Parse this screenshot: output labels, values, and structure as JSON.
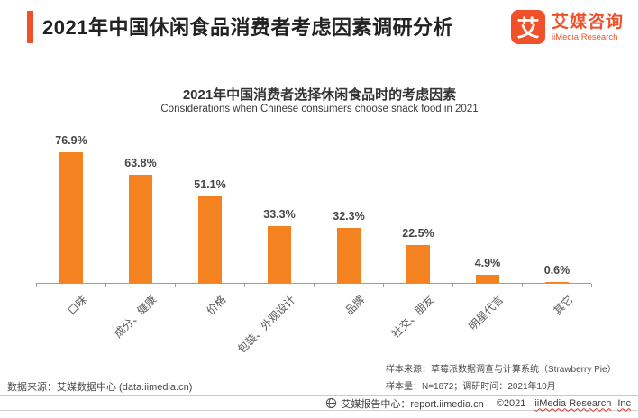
{
  "colors": {
    "accent_orange": "#F0512A",
    "bar_orange": "#F58220",
    "spellcheck_red": "#E0382E"
  },
  "header": {
    "title": "2021年中国休闲食品消费者考虑因素调研分析",
    "logo": {
      "mark": "艾",
      "name_cn": "艾媒咨询",
      "name_en": "iiMedia Research"
    }
  },
  "chart_data": {
    "type": "bar",
    "title": "2021年中国消费者选择休闲食品时的考虑因素",
    "subtitle": "Considerations when Chinese consumers choose snack food in 2021",
    "categories": [
      "口味",
      "成分、健康",
      "价格",
      "包装、外观设计",
      "品牌",
      "社交、朋友",
      "明星代言",
      "其它"
    ],
    "values": [
      76.9,
      63.8,
      51.1,
      33.3,
      32.3,
      22.5,
      4.9,
      0.6
    ],
    "value_labels": [
      "76.9%",
      "63.8%",
      "51.1%",
      "33.3%",
      "32.3%",
      "22.5%",
      "4.9%",
      "0.6%"
    ],
    "unit": "%",
    "bar_color": "#F58220",
    "ylim": [
      0,
      80
    ],
    "grid": false,
    "legend": null,
    "xlabel": "",
    "ylabel": ""
  },
  "notes": {
    "data_source": "数据来源：艾媒数据中心 (data.iimedia.cn)",
    "sample_source": "样本来源：草莓派数据调查与计算系统（Strawberry Pie）",
    "sample_size": "样本量：N=1872；调研时间：2021年10月"
  },
  "footer": {
    "report_center": "艾媒报告中心：report.iimedia.cn",
    "copyright": "©2021",
    "company": "iiMedia Research",
    "company_suffix": "Inc"
  }
}
